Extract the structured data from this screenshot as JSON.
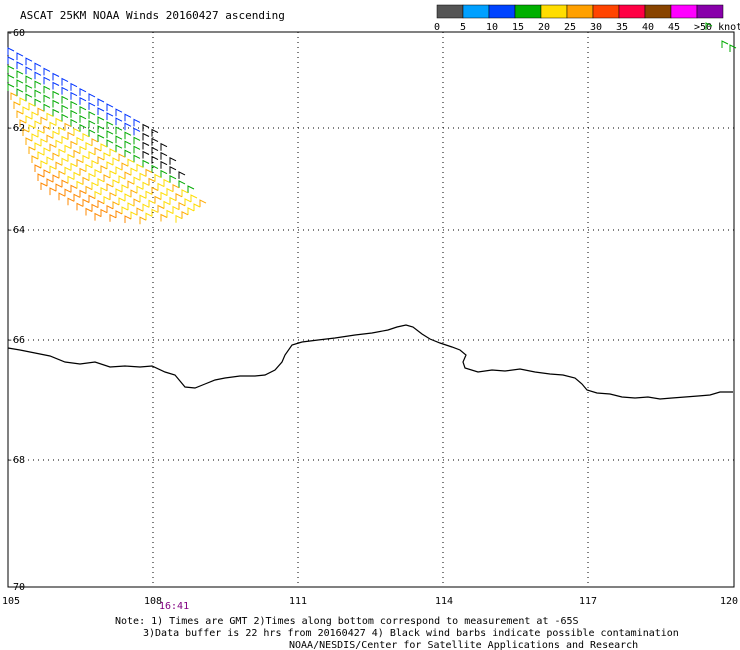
{
  "title": "ASCAT 25KM NOAA Winds 20160427 ascending",
  "colorbar": {
    "labels": [
      "0",
      "5",
      "10",
      "15",
      "20",
      "25",
      "30",
      "35",
      "40",
      "45",
      ">50 knots"
    ],
    "colors": [
      "#555555",
      "#00a0ff",
      "#0044ff",
      "#00b000",
      "#ffdd00",
      "#ffa000",
      "#ff4400",
      "#ff0044",
      "#884400",
      "#ff00ff",
      "#8800aa"
    ]
  },
  "axes": {
    "lat_labels": [
      "-60",
      "-62",
      "-64",
      "-66",
      "-68",
      "-70"
    ],
    "lon_labels": [
      "105",
      "108",
      "111",
      "114",
      "117",
      "120"
    ]
  },
  "time_label": "16:41",
  "notes": [
    "Note: 1) Times are GMT 2)Times along bottom correspond to measurement at -65S",
    "3)Data buffer is 22 hrs from 20160427 4) Black wind barbs indicate possible contamination",
    "NOAA/NESDIS/Center for Satellite Applications and Research"
  ]
}
